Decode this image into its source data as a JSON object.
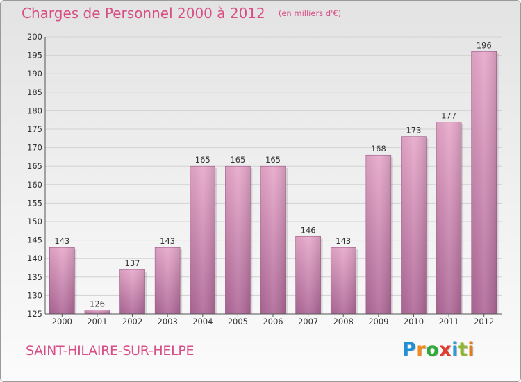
{
  "header": {
    "title": "Charges de Personnel 2000 à 2012",
    "subtitle": "(en milliers d'€)"
  },
  "footer": {
    "commune": "SAINT-HILAIRE-SUR-HELPE",
    "logo": [
      "P",
      "r",
      "o",
      "x",
      "i",
      "t",
      "i"
    ],
    "logo_colors": [
      "#1f8fd6",
      "#f28a1d",
      "#2eaa3a",
      "#e23a2f",
      "#2e9bd6",
      "#8ab82a",
      "#e07c1c"
    ]
  },
  "chart_data": {
    "type": "bar",
    "title": "Charges de Personnel 2000 à 2012",
    "subtitle": "(en milliers d'€)",
    "categories": [
      "2000",
      "2001",
      "2002",
      "2003",
      "2004",
      "2005",
      "2006",
      "2007",
      "2008",
      "2009",
      "2010",
      "2011",
      "2012"
    ],
    "values": [
      143,
      126,
      137,
      143,
      165,
      165,
      165,
      146,
      143,
      168,
      173,
      177,
      196
    ],
    "ylim": [
      125,
      200
    ],
    "yticks": [
      125,
      130,
      135,
      140,
      145,
      150,
      155,
      160,
      165,
      170,
      175,
      180,
      185,
      190,
      195,
      200
    ],
    "grid": true,
    "bar_color": "#d87fb0",
    "bar_color_light": "#e8a9cb",
    "bar_color_dark": "#b06a99"
  }
}
